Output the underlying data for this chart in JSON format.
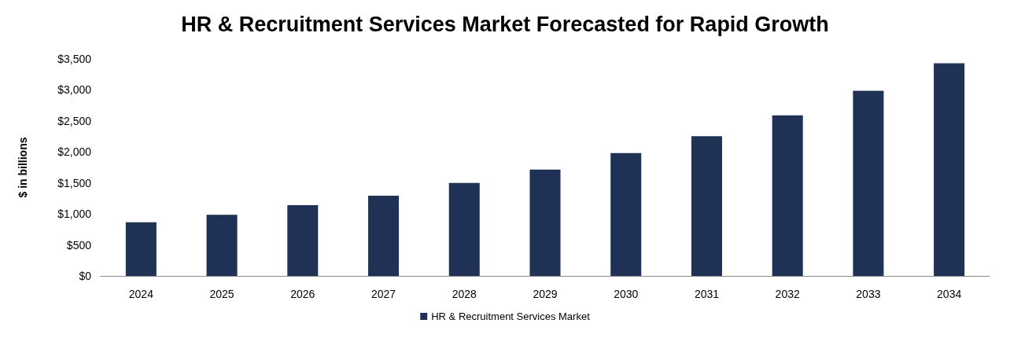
{
  "chart_data": {
    "type": "bar",
    "title": "HR & Recruitment Services Market Forecasted for Rapid Growth",
    "ylabel": "$ in billions",
    "categories": [
      "2024",
      "2025",
      "2026",
      "2027",
      "2028",
      "2029",
      "2030",
      "2031",
      "2032",
      "2033",
      "2034"
    ],
    "series": [
      {
        "name": "HR & Recruitment Services Market",
        "color": "#1f3256",
        "values": [
          865,
          985,
          1140,
          1295,
          1500,
          1715,
          1980,
          2255,
          2590,
          2985,
          3430
        ]
      }
    ],
    "ylim": [
      0,
      3500
    ],
    "yticks": [
      {
        "value": 0,
        "label": "$0"
      },
      {
        "value": 500,
        "label": "$500"
      },
      {
        "value": 1000,
        "label": "$1,000"
      },
      {
        "value": 1500,
        "label": "$1,500"
      },
      {
        "value": 2000,
        "label": "$2,000"
      },
      {
        "value": 2500,
        "label": "$2,500"
      },
      {
        "value": 3000,
        "label": "$3,000"
      },
      {
        "value": 3500,
        "label": "$3,500"
      }
    ],
    "grid": false,
    "legend": "bottom"
  }
}
